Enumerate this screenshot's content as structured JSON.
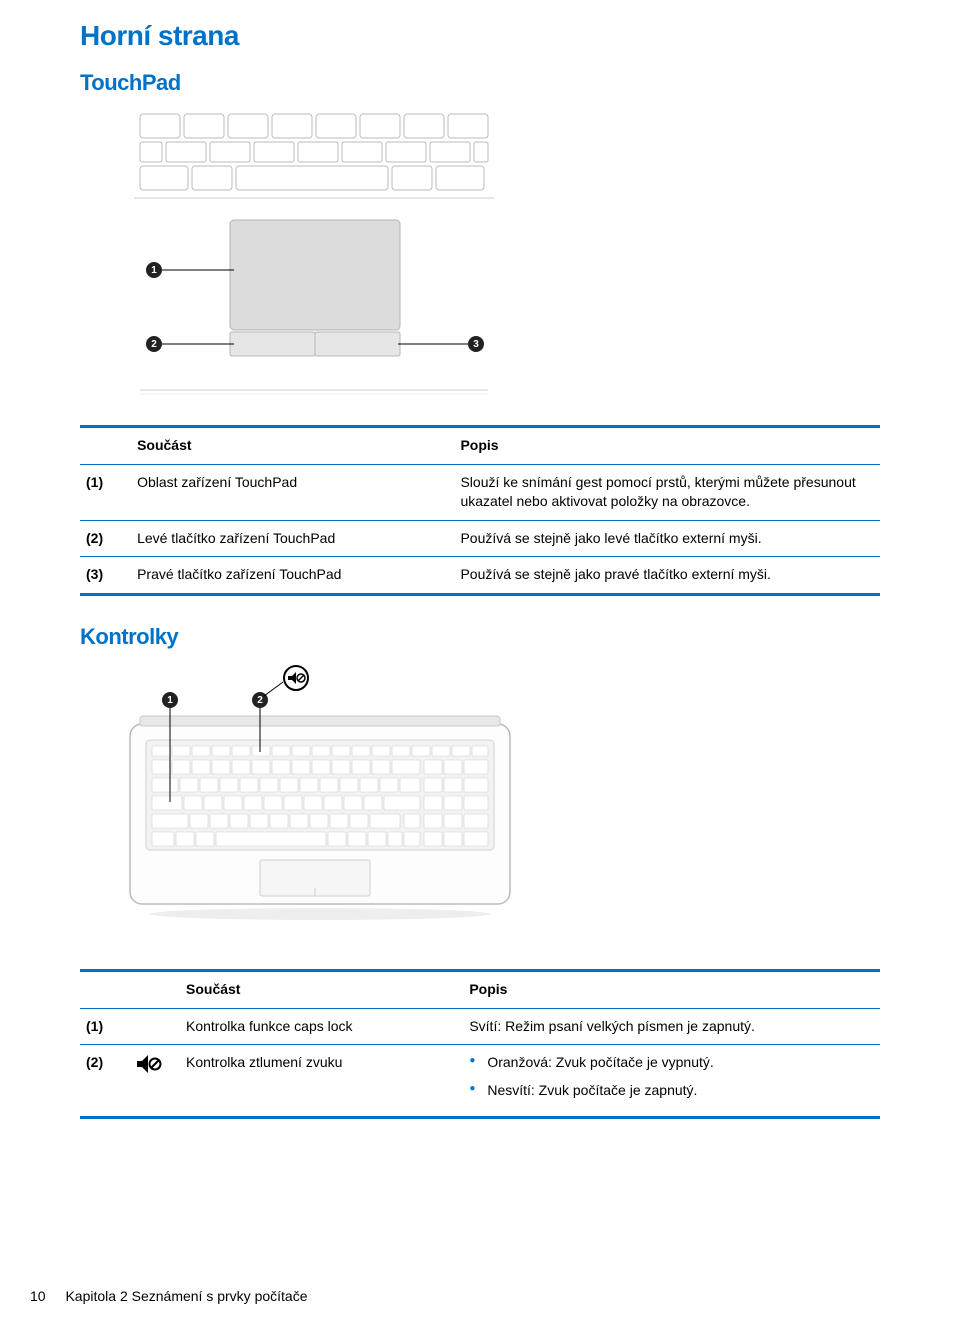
{
  "colors": {
    "brand_blue": "#0073c8",
    "rule_blue": "#0073c8",
    "rule_dark": "#0073c8",
    "bullet_blue": "#0073c8",
    "text": "#000000",
    "figure_fill": "#d9d9d9",
    "figure_stroke": "#aaaaaa",
    "badge": "#222222"
  },
  "headings": {
    "main": "Horní strana",
    "touchpad": "TouchPad",
    "kontrolky": "Kontrolky"
  },
  "touchpad_table": {
    "head_component": "Součást",
    "head_desc": "Popis",
    "rows": [
      {
        "idx": "(1)",
        "name": "Oblast zařízení TouchPad",
        "desc": "Slouží ke snímání gest pomocí prstů, kterými můžete přesunout ukazatel nebo aktivovat položky na obrazovce."
      },
      {
        "idx": "(2)",
        "name": "Levé tlačítko zařízení TouchPad",
        "desc": "Používá se stejně jako levé tlačítko externí myši."
      },
      {
        "idx": "(3)",
        "name": "Pravé tlačítko zařízení TouchPad",
        "desc": "Používá se stejně jako pravé tlačítko externí myši."
      }
    ]
  },
  "kontrolky_table": {
    "head_component": "Součást",
    "head_desc": "Popis",
    "rows": [
      {
        "idx": "(1)",
        "icon": null,
        "name": "Kontrolka funkce caps lock",
        "desc_type": "single",
        "desc": "Svítí: Režim psaní velkých písmen je zapnutý."
      },
      {
        "idx": "(2)",
        "icon": "mute-icon",
        "name": "Kontrolka ztlumení zvuku",
        "desc_type": "bullets",
        "bullets": [
          "Oranžová: Zvuk počítače je vypnutý.",
          "Nesvítí: Zvuk počítače je zapnutý."
        ]
      }
    ]
  },
  "footer": {
    "page": "10",
    "chapter": "Kapitola 2   Seznámení s prvky počítače"
  }
}
